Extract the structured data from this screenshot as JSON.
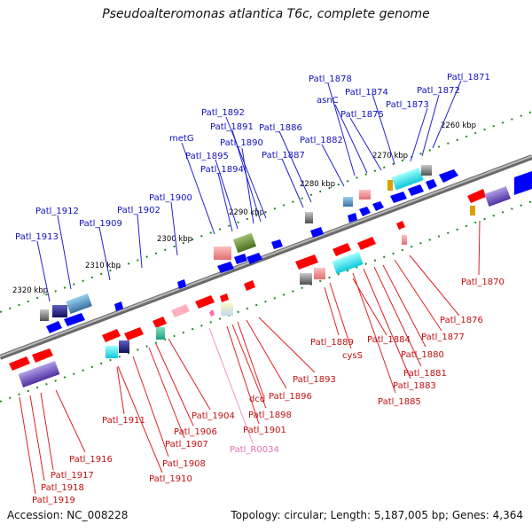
{
  "title": "Pseudoalteromonas atlantica T6c, complete genome",
  "footer": {
    "accession": "Accession: NC_008228",
    "topology": "Topology: circular; Length: 5,187,005 bp; Genes: 4,364"
  },
  "kbp_ticks": [
    "2260 kbp",
    "2270 kbp",
    "2280 kbp",
    "2290 kbp",
    "2300 kbp",
    "2310 kbp",
    "2320 kbp"
  ],
  "plus_labels": [
    "Patl_1871",
    "Patl_1872",
    "Patl_1873",
    "Patl_1874",
    "Patl_1875",
    "asnC",
    "Patl_1878",
    "Patl_1882",
    "Patl_1886",
    "Patl_1887",
    "Patl_1892",
    "Patl_1891",
    "Patl_1890",
    "metG",
    "Patl_1895",
    "Patl_1894",
    "Patl_1900",
    "Patl_1902",
    "Patl_1909",
    "Patl_1912",
    "Patl_1913"
  ],
  "minus_labels": [
    "Patl_1870",
    "Patl_1876",
    "Patl_1877",
    "Patl_1880",
    "Patl_1881",
    "Patl_1883",
    "Patl_1885",
    "Patl_1884",
    "cysS",
    "Patl_1889",
    "Patl_1893",
    "Patl_1896",
    "dcd",
    "Patl_1898",
    "Patl_1901",
    "Patl_1904",
    "Patl_1906",
    "Patl_1907",
    "Patl_1908",
    "Patl_1910",
    "Patl_1911",
    "Patl_1916",
    "Patl_1917",
    "Patl_1918",
    "Patl_1919"
  ],
  "rna_labels": [
    "Patl_R0034"
  ],
  "colors": {
    "plus_strand": "#0000ff",
    "minus_strand": "#ff0000",
    "backbone": "#888888",
    "plus_label": "#1010c0",
    "minus_label": "#c01010",
    "rna_label": "#e070b0",
    "tick": "#1a8a1a"
  }
}
